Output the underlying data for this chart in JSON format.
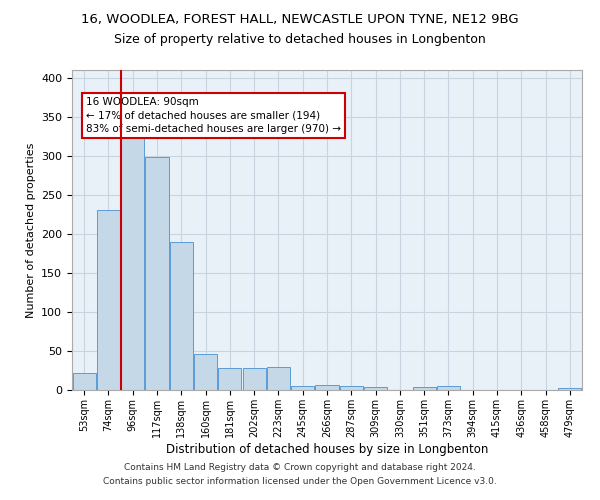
{
  "title1": "16, WOODLEA, FOREST HALL, NEWCASTLE UPON TYNE, NE12 9BG",
  "title2": "Size of property relative to detached houses in Longbenton",
  "xlabel": "Distribution of detached houses by size in Longbenton",
  "ylabel": "Number of detached properties",
  "footnote1": "Contains HM Land Registry data © Crown copyright and database right 2024.",
  "footnote2": "Contains public sector information licensed under the Open Government Licence v3.0.",
  "bar_labels": [
    "53sqm",
    "74sqm",
    "96sqm",
    "117sqm",
    "138sqm",
    "160sqm",
    "181sqm",
    "202sqm",
    "223sqm",
    "245sqm",
    "266sqm",
    "287sqm",
    "309sqm",
    "330sqm",
    "351sqm",
    "373sqm",
    "394sqm",
    "415sqm",
    "436sqm",
    "458sqm",
    "479sqm"
  ],
  "bar_values": [
    22,
    230,
    323,
    298,
    190,
    46,
    28,
    28,
    29,
    5,
    6,
    5,
    4,
    0,
    4,
    5,
    0,
    0,
    0,
    0,
    3
  ],
  "bar_color": "#c5d8e8",
  "bar_edge_color": "#5b9bd5",
  "grid_color": "#c8d4e0",
  "background_color": "#e8f0f8",
  "property_label": "16 WOODLEA: 90sqm",
  "annotation_line1": "← 17% of detached houses are smaller (194)",
  "annotation_line2": "83% of semi-detached houses are larger (970) →",
  "vline_color": "#cc0000",
  "annotation_box_color": "#ffffff",
  "annotation_box_edge": "#cc0000",
  "ylim": [
    0,
    410
  ],
  "yticks": [
    0,
    50,
    100,
    150,
    200,
    250,
    300,
    350,
    400
  ],
  "title1_fontsize": 9.5,
  "title2_fontsize": 9,
  "xlabel_fontsize": 8.5,
  "ylabel_fontsize": 8,
  "tick_fontsize": 7,
  "annotation_fontsize": 7.5,
  "footnote_fontsize": 6.5
}
